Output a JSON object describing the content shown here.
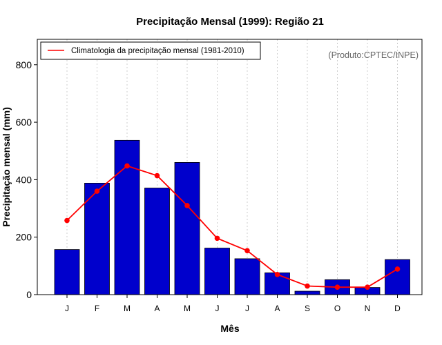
{
  "chart_data": {
    "type": "bar",
    "title": "Precipitação Mensal (1999): Região 21",
    "xlabel": "Mês",
    "ylabel": "Precipitação mensal (mm)",
    "ylim": [
      0,
      890
    ],
    "yticks": [
      0,
      200,
      400,
      600,
      800
    ],
    "categories": [
      "J",
      "F",
      "M",
      "A",
      "M",
      "J",
      "J",
      "A",
      "S",
      "O",
      "N",
      "D"
    ],
    "series": [
      {
        "name": "Precipitação mensal 1999",
        "type": "bar",
        "color": "#0000cc",
        "values": [
          157,
          388,
          537,
          371,
          460,
          162,
          125,
          76,
          12,
          52,
          25,
          122
        ]
      },
      {
        "name": "Climatologia da precipitação mensal (1981-2010)",
        "type": "line",
        "color": "#ff0000",
        "values": [
          258,
          360,
          448,
          414,
          310,
          196,
          153,
          70,
          30,
          26,
          26,
          89
        ]
      }
    ],
    "legend": {
      "position": "top-left",
      "entries": [
        "Climatologia da precipitação mensal (1981-2010)"
      ]
    },
    "grid": "vertical-dotted",
    "annotation": "(Produto:CPTEC/INPE)"
  }
}
